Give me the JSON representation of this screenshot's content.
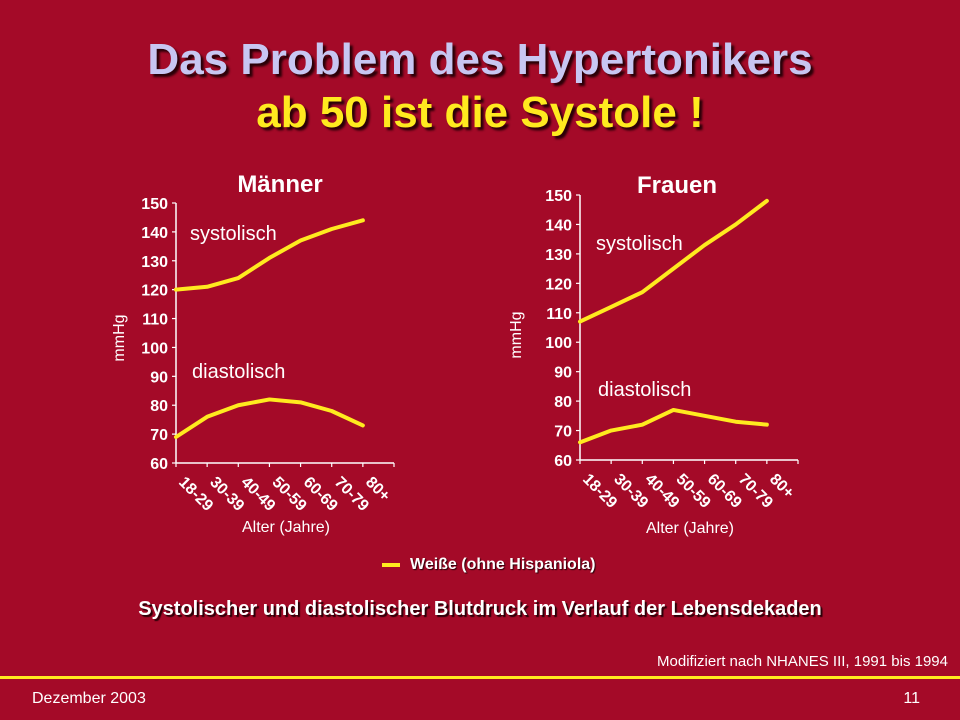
{
  "title": {
    "line1": "Das Problem des Hypertonikers",
    "line2": "ab 50 ist die Systole !"
  },
  "chart_data": [
    {
      "type": "line",
      "title": "Männer",
      "xlabel": "Alter (Jahre)",
      "ylabel": "mmHg",
      "categories": [
        "18-29",
        "30-39",
        "40-49",
        "50-59",
        "60-69",
        "70-79",
        "80+"
      ],
      "ylim": [
        60,
        150
      ],
      "yticks": [
        60,
        70,
        80,
        90,
        100,
        110,
        120,
        130,
        140,
        150
      ],
      "series": [
        {
          "name": "systolisch",
          "values": [
            120,
            121,
            124,
            131,
            137,
            141,
            144
          ]
        },
        {
          "name": "diastolisch",
          "values": [
            69,
            76,
            80,
            82,
            81,
            78,
            73
          ]
        }
      ],
      "grid": false,
      "color": "#ffea1f"
    },
    {
      "type": "line",
      "title": "Frauen",
      "xlabel": "Alter (Jahre)",
      "ylabel": "mmHg",
      "categories": [
        "18-29",
        "30-39",
        "40-49",
        "50-59",
        "60-69",
        "70-79",
        "80+"
      ],
      "ylim": [
        60,
        150
      ],
      "yticks": [
        60,
        70,
        80,
        90,
        100,
        110,
        120,
        130,
        140,
        150
      ],
      "series": [
        {
          "name": "systolisch",
          "values": [
            107,
            112,
            117,
            125,
            133,
            140,
            148
          ]
        },
        {
          "name": "diastolisch",
          "values": [
            66,
            70,
            72,
            77,
            75,
            73,
            72
          ]
        }
      ],
      "grid": false,
      "color": "#ffea1f"
    }
  ],
  "legend": {
    "label": "Weiße (ohne Hispaniola)",
    "color": "#ffea1f"
  },
  "caption": "Systolischer und diastolischer Blutdruck im Verlauf der Lebensdekaden",
  "source": "Modifiziert nach NHANES III, 1991 bis 1994",
  "footer": {
    "date": "Dezember 2003",
    "page": "11"
  },
  "colors": {
    "background": "#a40a28",
    "accent": "#ffea1f",
    "title": "#c8c6f2"
  }
}
